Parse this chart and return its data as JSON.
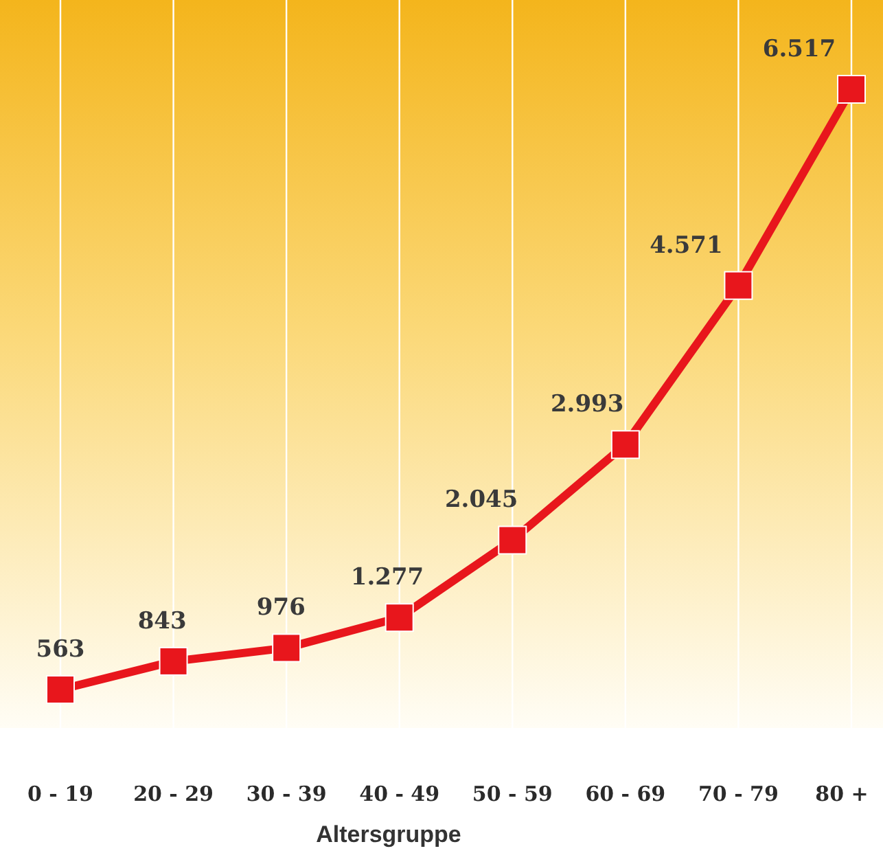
{
  "chart_data": {
    "type": "line",
    "xlabel": "Altersgruppe",
    "categories": [
      "0 - 19",
      "20 - 29",
      "30 - 39",
      "40 - 49",
      "50 - 59",
      "60 - 69",
      "70 - 79",
      "80 +"
    ],
    "series": [
      {
        "color": "#e8161c",
        "values": [
          563,
          843,
          976,
          1277,
          2045,
          2993,
          4571,
          6517
        ],
        "value_labels": [
          "563",
          "843",
          "976",
          "1.277",
          "2.045",
          "2.993",
          "4.571",
          "6.517"
        ]
      }
    ],
    "grid": "x",
    "marker": "square",
    "line_style": "solid"
  }
}
